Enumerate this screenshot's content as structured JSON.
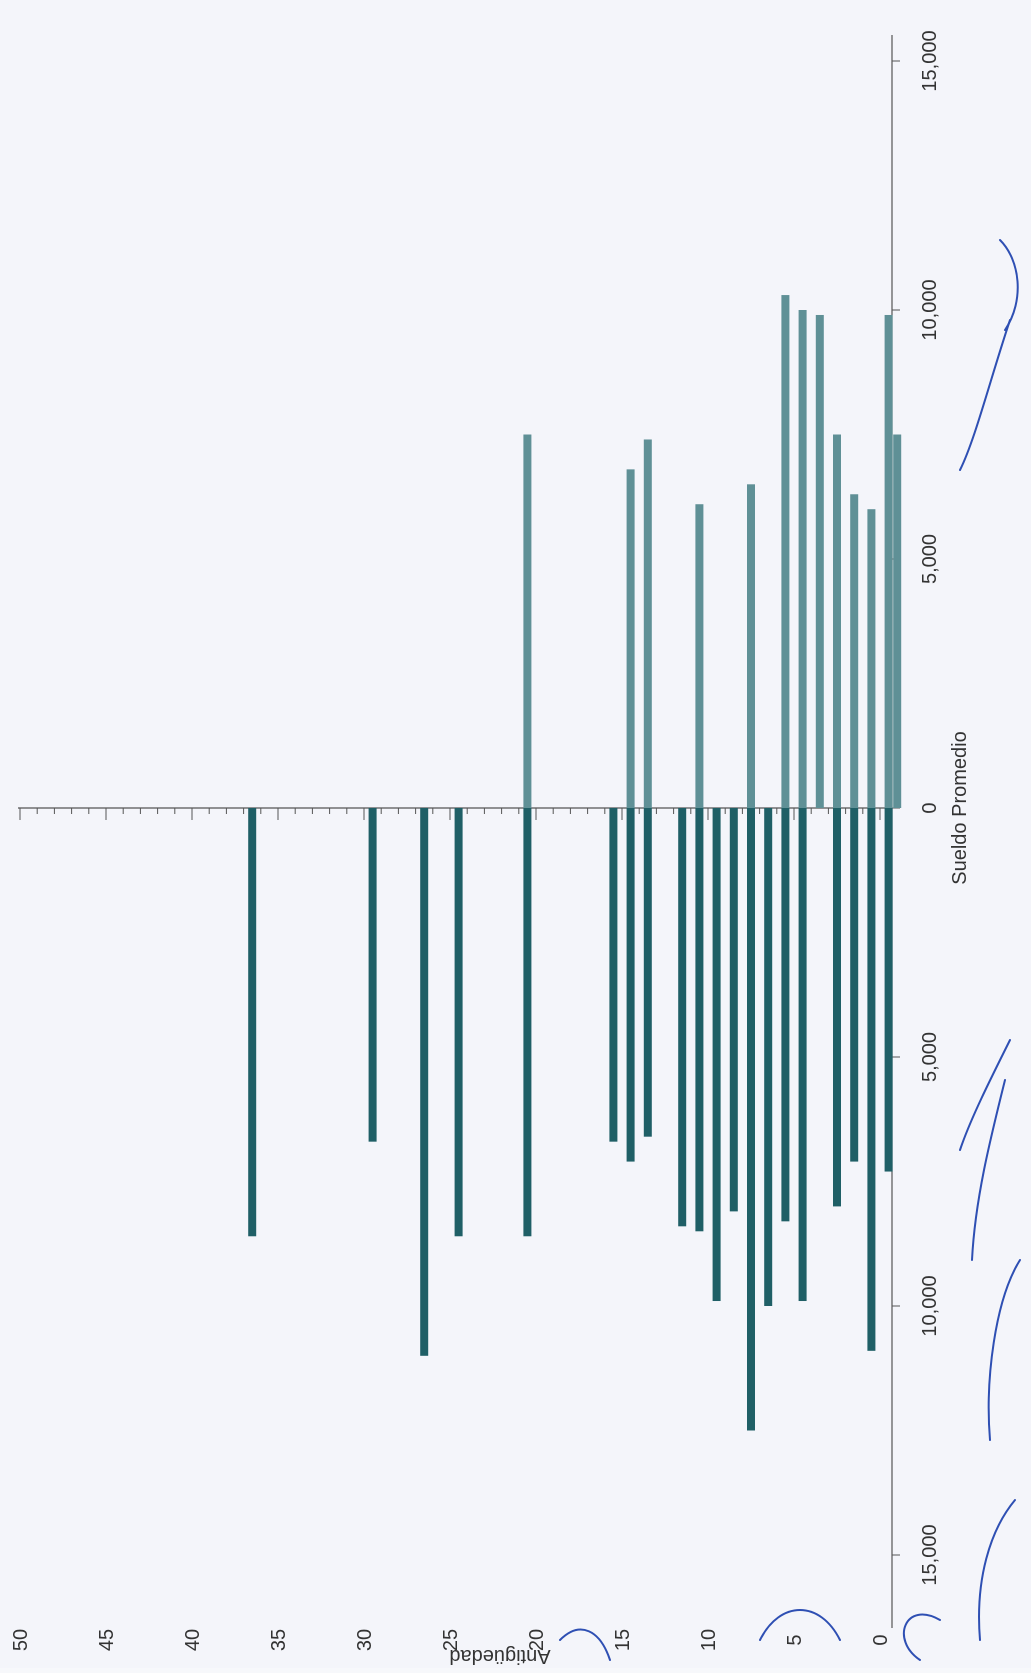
{
  "chart_data": {
    "type": "bar",
    "orientation": "population-pyramid",
    "xlabel": "Sueldo Promedio",
    "ylabel": "Antigüedad",
    "x_ticks": [
      "15,000",
      "10,000",
      "5,000",
      "0",
      "5,000",
      "10,000",
      "15,000"
    ],
    "y_ticks": [
      "0",
      "5",
      "10",
      "15",
      "20",
      "25",
      "30",
      "35",
      "40",
      "45",
      "50"
    ],
    "xlim": [
      -15000,
      15000
    ],
    "ylim": [
      0,
      50
    ],
    "grid": false,
    "colors": {
      "left_series": "#1f5f66",
      "right_series": "#5f9096",
      "axis": "#555555",
      "ink": "#2e4fb3"
    },
    "series": [
      {
        "side": "left",
        "points": [
          {
            "y": 36.5,
            "value": 8600
          },
          {
            "y": 29.5,
            "value": 6700
          },
          {
            "y": 26.5,
            "value": 11000
          },
          {
            "y": 24.5,
            "value": 8600
          },
          {
            "y": 20.5,
            "value": 8600
          },
          {
            "y": 15.5,
            "value": 6700
          },
          {
            "y": 14.5,
            "value": 7100
          },
          {
            "y": 13.5,
            "value": 6600
          },
          {
            "y": 11.5,
            "value": 8400
          },
          {
            "y": 10.5,
            "value": 8500
          },
          {
            "y": 9.5,
            "value": 9900
          },
          {
            "y": 8.5,
            "value": 8100
          },
          {
            "y": 7.5,
            "value": 12500
          },
          {
            "y": 6.5,
            "value": 10000
          },
          {
            "y": 5.5,
            "value": 8300
          },
          {
            "y": 4.5,
            "value": 9900
          },
          {
            "y": 2.5,
            "value": 8000
          },
          {
            "y": 1.5,
            "value": 7100
          },
          {
            "y": 0.5,
            "value": 10900
          },
          {
            "y": -0.5,
            "value": 7300
          }
        ]
      },
      {
        "side": "right",
        "points": [
          {
            "y": 20.5,
            "value": 7500
          },
          {
            "y": 14.5,
            "value": 6800
          },
          {
            "y": 13.5,
            "value": 7400
          },
          {
            "y": 10.5,
            "value": 6100
          },
          {
            "y": 7.5,
            "value": 6500
          },
          {
            "y": 5.5,
            "value": 10300
          },
          {
            "y": 4.5,
            "value": 10000
          },
          {
            "y": 3.5,
            "value": 9900
          },
          {
            "y": 2.5,
            "value": 7500
          },
          {
            "y": 1.5,
            "value": 6300
          },
          {
            "y": 0.5,
            "value": 6000
          },
          {
            "y": -0.5,
            "value": 9900
          },
          {
            "y": -1.0,
            "value": 7500
          }
        ]
      }
    ]
  },
  "annotation": {
    "handwritten": "M.T.C"
  }
}
